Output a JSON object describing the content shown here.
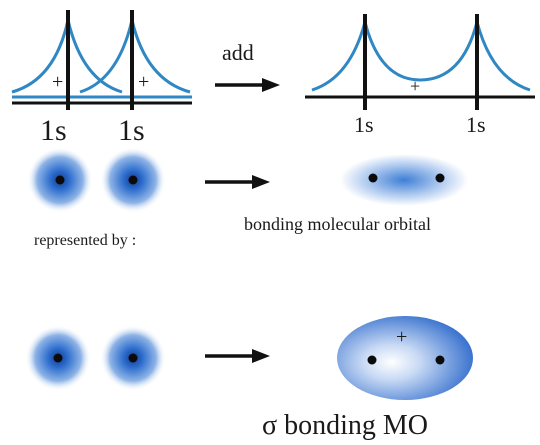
{
  "colors": {
    "curve": "#2f87c4",
    "axis": "#111111",
    "orbital_core": "#1f5fc0",
    "orbital_edge": "#ffffff",
    "nucleus": "#0b0b0b"
  },
  "top_row": {
    "left_plus_1": "+",
    "left_plus_2": "+",
    "left_label_1": "1s",
    "left_label_2": "1s",
    "arrow_label": "add",
    "right_plus": "+",
    "right_label_1": "1s",
    "right_label_2": "1s"
  },
  "middle_row": {
    "caption_left": "represented by :",
    "caption_right": "bonding molecular orbital"
  },
  "bottom_row": {
    "plus": "+",
    "caption": "σ bonding MO"
  }
}
